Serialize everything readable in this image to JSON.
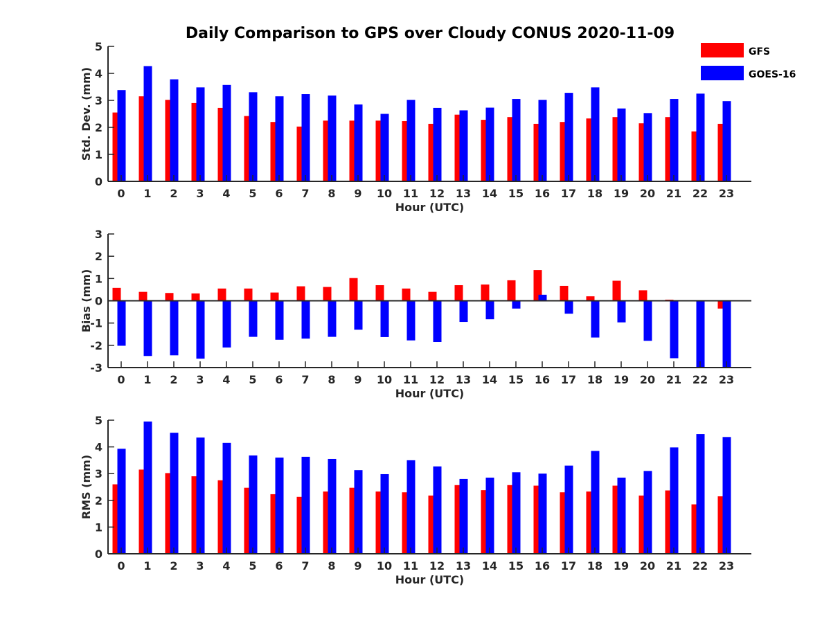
{
  "title": "Daily Comparison to GPS over Cloudy CONUS 2020-11-09",
  "legend": [
    {
      "name": "GFS",
      "color": "#ff0000"
    },
    {
      "name": "GOES-16",
      "color": "#0000ff"
    }
  ],
  "chart_data": [
    {
      "type": "bar",
      "xlabel": "Hour (UTC)",
      "ylabel": "Std. Dev. (mm)",
      "ylim": [
        0,
        5
      ],
      "yticks": [
        "0",
        "1",
        "2",
        "3",
        "4",
        "5"
      ],
      "categories": [
        "0",
        "1",
        "2",
        "3",
        "4",
        "5",
        "6",
        "7",
        "8",
        "9",
        "10",
        "11",
        "12",
        "13",
        "14",
        "15",
        "16",
        "17",
        "18",
        "19",
        "20",
        "21",
        "22",
        "23"
      ],
      "series": [
        {
          "name": "GFS",
          "color": "#ff0000",
          "values": [
            2.55,
            3.15,
            3.02,
            2.9,
            2.72,
            2.42,
            2.2,
            2.03,
            2.25,
            2.25,
            2.25,
            2.23,
            2.13,
            2.47,
            2.28,
            2.38,
            2.13,
            2.2,
            2.33,
            2.38,
            2.15,
            2.38,
            1.85,
            2.13
          ]
        },
        {
          "name": "GOES-16",
          "color": "#0000ff",
          "values": [
            3.38,
            4.27,
            3.78,
            3.48,
            3.57,
            3.3,
            3.15,
            3.23,
            3.18,
            2.85,
            2.5,
            3.02,
            2.72,
            2.63,
            2.73,
            3.05,
            3.02,
            3.28,
            3.48,
            2.7,
            2.53,
            3.05,
            3.25,
            2.97
          ]
        }
      ]
    },
    {
      "type": "bar",
      "xlabel": "Hour (UTC)",
      "ylabel": "Bias (mm)",
      "ylim": [
        -3,
        3
      ],
      "yticks": [
        "-3",
        "-2",
        "-1",
        "0",
        "1",
        "2",
        "3"
      ],
      "categories": [
        "0",
        "1",
        "2",
        "3",
        "4",
        "5",
        "6",
        "7",
        "8",
        "9",
        "10",
        "11",
        "12",
        "13",
        "14",
        "15",
        "16",
        "17",
        "18",
        "19",
        "20",
        "21",
        "22",
        "23"
      ],
      "series": [
        {
          "name": "GFS",
          "color": "#ff0000",
          "values": [
            0.58,
            0.4,
            0.35,
            0.33,
            0.55,
            0.55,
            0.37,
            0.65,
            0.62,
            1.02,
            0.7,
            0.55,
            0.4,
            0.7,
            0.73,
            0.92,
            1.38,
            0.67,
            0.2,
            0.9,
            0.47,
            0.05,
            0.03,
            -0.35
          ]
        },
        {
          "name": "GOES-16",
          "color": "#0000ff",
          "values": [
            -2.02,
            -2.48,
            -2.45,
            -2.6,
            -2.1,
            -1.62,
            -1.75,
            -1.7,
            -1.62,
            -1.3,
            -1.63,
            -1.78,
            -1.85,
            -0.95,
            -0.83,
            -0.35,
            0.27,
            -0.58,
            -1.65,
            -0.97,
            -1.8,
            -2.58,
            -3.0,
            -3.0
          ]
        }
      ]
    },
    {
      "type": "bar",
      "xlabel": "Hour (UTC)",
      "ylabel": "RMS (mm)",
      "ylim": [
        0,
        5
      ],
      "yticks": [
        "0",
        "1",
        "2",
        "3",
        "4",
        "5"
      ],
      "categories": [
        "0",
        "1",
        "2",
        "3",
        "4",
        "5",
        "6",
        "7",
        "8",
        "9",
        "10",
        "11",
        "12",
        "13",
        "14",
        "15",
        "16",
        "17",
        "18",
        "19",
        "20",
        "21",
        "22",
        "23"
      ],
      "series": [
        {
          "name": "GFS",
          "color": "#ff0000",
          "values": [
            2.6,
            3.15,
            3.02,
            2.9,
            2.75,
            2.47,
            2.23,
            2.13,
            2.33,
            2.47,
            2.33,
            2.3,
            2.18,
            2.57,
            2.38,
            2.57,
            2.55,
            2.3,
            2.33,
            2.55,
            2.18,
            2.37,
            1.85,
            2.15
          ]
        },
        {
          "name": "GOES-16",
          "color": "#0000ff",
          "values": [
            3.93,
            4.95,
            4.53,
            4.35,
            4.15,
            3.68,
            3.6,
            3.63,
            3.55,
            3.13,
            2.98,
            3.5,
            3.27,
            2.8,
            2.85,
            3.05,
            3.0,
            3.3,
            3.85,
            2.85,
            3.1,
            3.98,
            4.48,
            4.37
          ]
        }
      ]
    }
  ]
}
